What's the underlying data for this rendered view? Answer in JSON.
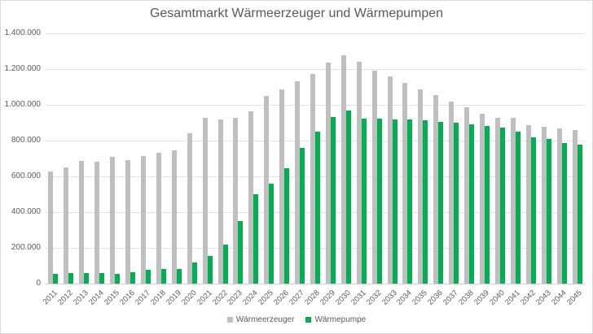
{
  "chart_data": {
    "type": "bar",
    "title": "Gesamtmarkt Wärmeerzeuger und Wärmepumpen",
    "xlabel": "",
    "ylabel": "",
    "ylim": [
      0,
      1400000
    ],
    "yticks": [
      "0",
      "200.000",
      "400.000",
      "600.000",
      "800.000",
      "1.000.000",
      "1.200.000",
      "1.400.000"
    ],
    "grid": true,
    "legend_position": "bottom",
    "categories": [
      "2011",
      "2012",
      "2013",
      "2014",
      "2015",
      "2016",
      "2017",
      "2018",
      "2019",
      "2020",
      "2021",
      "2022",
      "2023",
      "2024",
      "2025",
      "2026",
      "2027",
      "2028",
      "2029",
      "2030",
      "2031",
      "2032",
      "2033",
      "2034",
      "2035",
      "2036",
      "2037",
      "2038",
      "2039",
      "2040",
      "2041",
      "2042",
      "2043",
      "2044",
      "2045"
    ],
    "series": [
      {
        "name": "Wärmeerzeuger",
        "color": "#bfbfbf",
        "values": [
          627000,
          650000,
          686000,
          680000,
          708000,
          692000,
          712000,
          732000,
          747000,
          842000,
          929000,
          918000,
          926000,
          965000,
          1049000,
          1086000,
          1130000,
          1173000,
          1235000,
          1277000,
          1242000,
          1192000,
          1158000,
          1121000,
          1085000,
          1053000,
          1019000,
          985000,
          950000,
          929000,
          929000,
          886000,
          879000,
          868000,
          859000
        ]
      },
      {
        "name": "Wärmepumpe",
        "color": "#00b050",
        "values": [
          54000,
          59000,
          59000,
          57000,
          54000,
          65000,
          77000,
          83000,
          84000,
          120000,
          154000,
          220000,
          349000,
          501000,
          560000,
          644000,
          760000,
          849000,
          933000,
          968000,
          921000,
          921000,
          918000,
          917000,
          912000,
          906000,
          900000,
          889000,
          883000,
          871000,
          849000,
          818000,
          809000,
          786000,
          779000
        ]
      }
    ]
  }
}
